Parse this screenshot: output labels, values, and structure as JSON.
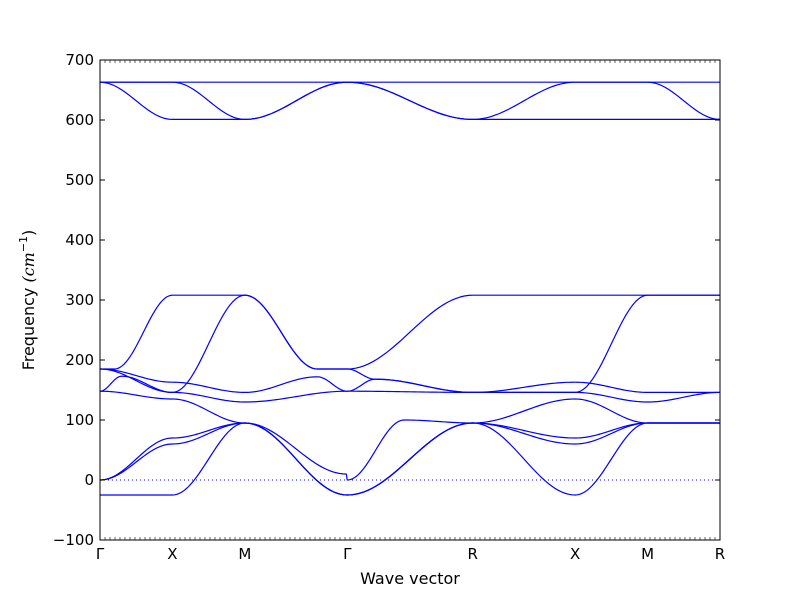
{
  "chart_data": {
    "type": "line",
    "xlabel": "Wave vector",
    "ylabel_text": "Frequency ",
    "ylabel_unit": "(cm",
    "ylabel_exp": "−1",
    "ylabel_close": ")",
    "ylim": [
      -100,
      700
    ],
    "yticks": [
      -100,
      0,
      100,
      200,
      300,
      400,
      500,
      600,
      700
    ],
    "grid": false,
    "line_color": "#0000ff",
    "zero_line": {
      "y": 0,
      "style": "dotted"
    },
    "x_points": [
      {
        "label": "Γ",
        "pos": 0.0
      },
      {
        "label": "X",
        "pos": 0.5
      },
      {
        "label": "M",
        "pos": 1.0
      },
      {
        "label": "Γ",
        "pos": 1.707
      },
      {
        "label": "R",
        "pos": 2.573
      },
      {
        "label": "X",
        "pos": 3.28
      },
      {
        "label": "M",
        "pos": 3.78
      },
      {
        "label": "R",
        "pos": 4.28
      }
    ],
    "series": [
      {
        "values": [
          [
            0,
            663
          ],
          [
            0.5,
            663
          ],
          [
            1.0,
            663
          ],
          [
            1.707,
            663
          ],
          [
            2.573,
            663
          ],
          [
            3.28,
            663
          ],
          [
            3.78,
            663
          ],
          [
            4.28,
            663
          ]
        ]
      },
      {
        "values": [
          [
            0,
            663
          ],
          [
            0.5,
            663
          ],
          [
            1.0,
            601
          ],
          [
            1.707,
            663
          ],
          [
            2.573,
            601
          ],
          [
            3.28,
            663
          ],
          [
            3.78,
            663
          ],
          [
            4.28,
            601
          ]
        ]
      },
      {
        "values": [
          [
            0,
            663
          ],
          [
            0.5,
            601
          ],
          [
            1.0,
            601
          ],
          [
            1.707,
            663
          ],
          [
            2.573,
            601
          ],
          [
            3.28,
            601
          ],
          [
            3.78,
            601
          ],
          [
            4.28,
            601
          ]
        ]
      },
      {
        "values": [
          [
            0,
            185
          ],
          [
            0.1,
            185
          ],
          [
            0.5,
            308
          ],
          [
            1.0,
            308
          ],
          [
            1.5,
            185
          ],
          [
            1.707,
            185
          ],
          [
            2.573,
            308
          ],
          [
            3.28,
            308
          ],
          [
            3.78,
            308
          ],
          [
            4.28,
            308
          ]
        ]
      },
      {
        "values": [
          [
            0,
            185
          ],
          [
            0.5,
            163
          ],
          [
            1.0,
            146
          ],
          [
            1.5,
            172
          ],
          [
            1.707,
            148
          ],
          [
            2.573,
            146
          ],
          [
            3.28,
            146
          ],
          [
            3.78,
            308
          ],
          [
            4.28,
            308
          ]
        ]
      },
      {
        "values": [
          [
            0,
            185
          ],
          [
            0.5,
            146
          ],
          [
            1.0,
            308
          ],
          [
            1.5,
            185
          ],
          [
            1.707,
            185
          ],
          [
            1.9,
            168
          ],
          [
            2.573,
            146
          ],
          [
            3.28,
            163
          ],
          [
            3.78,
            146
          ],
          [
            4.28,
            146
          ]
        ]
      },
      {
        "values": [
          [
            0,
            148
          ],
          [
            0.15,
            173
          ],
          [
            0.5,
            146
          ],
          [
            1.0,
            130
          ],
          [
            1.707,
            148
          ],
          [
            1.9,
            168
          ],
          [
            2.573,
            146
          ],
          [
            3.28,
            146
          ],
          [
            3.78,
            130
          ],
          [
            4.28,
            146
          ]
        ]
      },
      {
        "values": [
          [
            0,
            148
          ],
          [
            0.5,
            135
          ],
          [
            1.0,
            95
          ],
          [
            1.7,
            10
          ],
          [
            1.707,
            0
          ],
          [
            2.1,
            100
          ],
          [
            2.573,
            95
          ],
          [
            3.28,
            135
          ],
          [
            3.78,
            95
          ],
          [
            4.28,
            95
          ]
        ]
      },
      {
        "values": [
          [
            0,
            0
          ],
          [
            0.5,
            70
          ],
          [
            1.0,
            95
          ],
          [
            1.707,
            -25
          ],
          [
            2.573,
            95
          ],
          [
            3.28,
            70
          ],
          [
            3.78,
            95
          ],
          [
            4.28,
            95
          ]
        ]
      },
      {
        "values": [
          [
            0,
            0
          ],
          [
            0.5,
            60
          ],
          [
            1.0,
            95
          ],
          [
            1.707,
            -25
          ],
          [
            2.573,
            95
          ],
          [
            3.28,
            60
          ],
          [
            3.78,
            95
          ],
          [
            4.28,
            95
          ]
        ]
      },
      {
        "values": [
          [
            0,
            -25
          ],
          [
            0.5,
            -25
          ],
          [
            1.0,
            95
          ],
          [
            1.707,
            -25
          ],
          [
            2.573,
            95
          ],
          [
            3.28,
            -25
          ],
          [
            3.78,
            95
          ],
          [
            4.28,
            95
          ]
        ]
      }
    ]
  }
}
